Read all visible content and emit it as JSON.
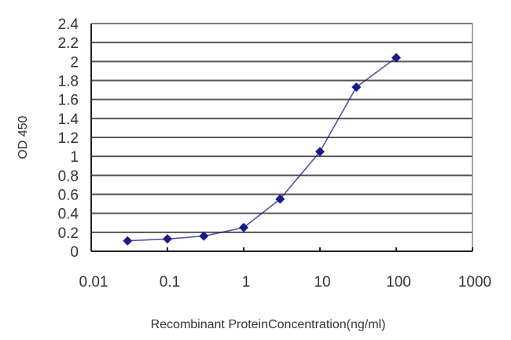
{
  "chart_data": {
    "type": "line",
    "title": "",
    "xlabel": "Recombinant ProteinConcentration(ng/ml)",
    "ylabel": "OD 450",
    "xscale": "log",
    "xlim": [
      0.01,
      1000
    ],
    "ylim": [
      0,
      2.4
    ],
    "x_ticks": [
      "0.01",
      "0.1",
      "1",
      "10",
      "100",
      "1000"
    ],
    "y_ticks": [
      "0",
      "0.2",
      "0.4",
      "0.6",
      "0.8",
      "1",
      "1.2",
      "1.4",
      "1.6",
      "1.8",
      "2",
      "2.2",
      "2.4"
    ],
    "grid": {
      "horizontal": true,
      "vertical": false
    },
    "legend": null,
    "series": [
      {
        "name": "OD 450",
        "color": "#1a1a8c",
        "marker": "diamond",
        "x": [
          0.03,
          0.1,
          0.3,
          1,
          3,
          10,
          30,
          100
        ],
        "values": [
          0.11,
          0.13,
          0.16,
          0.25,
          0.55,
          1.05,
          1.73,
          2.04
        ]
      }
    ]
  },
  "colors": {
    "series": "#1a1a8c",
    "grid": "#555555",
    "axis": "#222222",
    "text": "#333333"
  }
}
